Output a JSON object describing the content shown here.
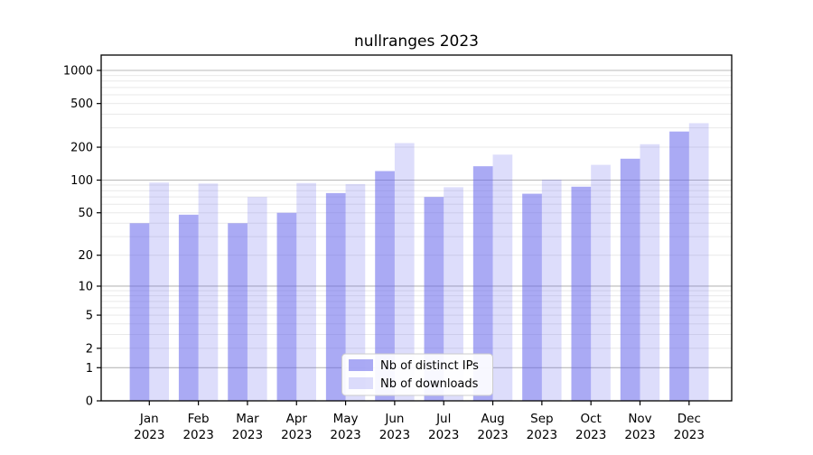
{
  "chart_data": {
    "type": "bar",
    "title": "nullranges 2023",
    "x_year": "2023",
    "x_months": [
      "Jan",
      "Feb",
      "Mar",
      "Apr",
      "May",
      "Jun",
      "Jul",
      "Aug",
      "Sep",
      "Oct",
      "Nov",
      "Dec"
    ],
    "categories": [
      "Jan 2023",
      "Feb 2023",
      "Mar 2023",
      "Apr 2023",
      "May 2023",
      "Jun 2023",
      "Jul 2023",
      "Aug 2023",
      "Sep 2023",
      "Oct 2023",
      "Nov 2023",
      "Dec 2023"
    ],
    "series": [
      {
        "name": "Nb of distinct IPs",
        "values": [
          40,
          48,
          40,
          50,
          76,
          121,
          70,
          134,
          75,
          87,
          157,
          278
        ],
        "color": "rgba(100,100,235,0.55)",
        "approx_hex": "#AAAAEF"
      },
      {
        "name": "Nb of downloads",
        "values": [
          95,
          93,
          70,
          94,
          92,
          218,
          86,
          171,
          101,
          138,
          213,
          331
        ],
        "color": "rgba(100,100,235,0.22)",
        "approx_hex": "#DCDCF9"
      }
    ],
    "yscale": "log1p",
    "yticks": [
      0,
      1,
      2,
      5,
      10,
      20,
      50,
      100,
      200,
      500,
      1000
    ],
    "ylim": [
      0,
      1390
    ],
    "xlabel": "",
    "ylabel": "",
    "grid": "both",
    "legend_position": "lower center",
    "colors": {
      "grid_major": "#b8b8b8",
      "grid_minor": "#e9e9e9",
      "axis_frame": "#000000",
      "tick_text": "#000000",
      "legend_border": "#cccccc",
      "legend_bg": "#ffffff",
      "background": "#ffffff"
    }
  }
}
